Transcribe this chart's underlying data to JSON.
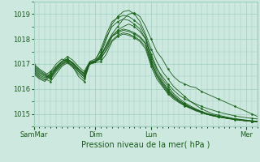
{
  "xlabel": "Pression niveau de la mer( hPa )",
  "background_color": "#cce8df",
  "grid_color": "#9ecfbf",
  "line_color": "#1a5c1a",
  "marker_color": "#1a6b1a",
  "ylim": [
    1014.5,
    1019.5
  ],
  "yticks": [
    1015,
    1016,
    1017,
    1018,
    1019
  ],
  "xtick_labels": [
    "SamMar",
    "Dim",
    "Lun",
    "Mer"
  ],
  "xtick_positions": [
    0,
    55,
    105,
    190
  ],
  "xlim": [
    0,
    200
  ],
  "series": [
    {
      "x": [
        0,
        5,
        10,
        15,
        20,
        25,
        30,
        35,
        40,
        45,
        50,
        55,
        60,
        65,
        70,
        75,
        80,
        85,
        90,
        95,
        100,
        105,
        110,
        115,
        120,
        125,
        130,
        135,
        140,
        145,
        150,
        155,
        160,
        165,
        170,
        175,
        180,
        185,
        190,
        195,
        200
      ],
      "y": [
        1016.8,
        1016.6,
        1016.5,
        1016.4,
        1016.9,
        1017.1,
        1017.2,
        1017.0,
        1016.8,
        1016.6,
        1017.0,
        1017.1,
        1017.3,
        1017.8,
        1018.2,
        1018.5,
        1018.8,
        1019.0,
        1019.05,
        1018.9,
        1018.5,
        1018.0,
        1017.5,
        1017.2,
        1016.8,
        1016.5,
        1016.3,
        1016.2,
        1016.1,
        1016.05,
        1015.9,
        1015.8,
        1015.7,
        1015.6,
        1015.5,
        1015.4,
        1015.3,
        1015.2,
        1015.1,
        1015.0,
        1014.9
      ]
    },
    {
      "x": [
        0,
        5,
        10,
        15,
        20,
        25,
        30,
        35,
        40,
        45,
        50,
        55,
        60,
        65,
        70,
        75,
        80,
        85,
        90,
        95,
        100,
        105,
        110,
        115,
        120,
        125,
        130,
        135,
        140,
        145,
        150,
        155,
        160,
        165,
        170,
        175,
        180,
        185,
        190,
        195,
        200
      ],
      "y": [
        1016.9,
        1016.7,
        1016.55,
        1016.7,
        1017.0,
        1017.2,
        1017.1,
        1016.9,
        1016.5,
        1016.3,
        1017.05,
        1017.1,
        1017.4,
        1018.0,
        1018.6,
        1018.9,
        1019.1,
        1019.15,
        1019.0,
        1018.7,
        1018.2,
        1017.6,
        1017.1,
        1016.7,
        1016.4,
        1016.1,
        1015.9,
        1015.7,
        1015.5,
        1015.35,
        1015.2,
        1015.1,
        1015.0,
        1014.95,
        1014.9,
        1014.85,
        1014.8,
        1014.78,
        1014.75,
        1014.72,
        1014.7
      ]
    },
    {
      "x": [
        0,
        5,
        10,
        15,
        20,
        25,
        30,
        35,
        40,
        45,
        50,
        55,
        60,
        65,
        70,
        75,
        80,
        85,
        90,
        95,
        100,
        105,
        110,
        115,
        120,
        125,
        130,
        135,
        140,
        145,
        150,
        155,
        160,
        165,
        170,
        175,
        180,
        185,
        190,
        195,
        200
      ],
      "y": [
        1016.7,
        1016.5,
        1016.4,
        1016.3,
        1016.6,
        1016.9,
        1017.05,
        1016.85,
        1016.6,
        1016.4,
        1017.0,
        1017.1,
        1017.2,
        1017.6,
        1018.1,
        1018.35,
        1018.5,
        1018.6,
        1018.5,
        1018.3,
        1018.0,
        1017.3,
        1016.8,
        1016.5,
        1016.2,
        1015.95,
        1015.75,
        1015.6,
        1015.5,
        1015.4,
        1015.3,
        1015.22,
        1015.15,
        1015.08,
        1015.02,
        1014.97,
        1014.92,
        1014.88,
        1014.85,
        1014.82,
        1014.8
      ]
    },
    {
      "x": [
        0,
        5,
        10,
        15,
        20,
        25,
        30,
        35,
        40,
        45,
        50,
        55,
        60,
        65,
        70,
        75,
        80,
        85,
        90,
        95,
        100,
        105,
        110,
        115,
        120,
        125,
        130,
        135,
        140,
        145,
        150,
        155,
        160,
        165,
        170,
        175,
        180,
        185,
        190,
        195,
        200
      ],
      "y": [
        1017.0,
        1016.8,
        1016.65,
        1016.5,
        1016.8,
        1017.1,
        1017.3,
        1017.15,
        1016.9,
        1016.7,
        1017.1,
        1017.2,
        1017.5,
        1018.1,
        1018.5,
        1018.7,
        1018.8,
        1018.75,
        1018.6,
        1018.4,
        1018.0,
        1017.2,
        1016.7,
        1016.3,
        1016.0,
        1015.75,
        1015.55,
        1015.4,
        1015.28,
        1015.18,
        1015.08,
        1015.0,
        1014.95,
        1014.9,
        1014.85,
        1014.82,
        1014.78,
        1014.75,
        1014.72,
        1014.7,
        1014.68
      ]
    },
    {
      "x": [
        0,
        5,
        10,
        15,
        20,
        25,
        30,
        35,
        40,
        45,
        50,
        55,
        60,
        65,
        70,
        75,
        80,
        85,
        90,
        95,
        100,
        105,
        110,
        115,
        120,
        125,
        130,
        135,
        140,
        145,
        150,
        155,
        160,
        165,
        170,
        175,
        180,
        185,
        190,
        195,
        200
      ],
      "y": [
        1016.6,
        1016.4,
        1016.3,
        1016.55,
        1016.8,
        1017.0,
        1017.1,
        1016.95,
        1016.7,
        1016.5,
        1017.0,
        1017.05,
        1017.1,
        1017.4,
        1017.9,
        1018.1,
        1018.2,
        1018.15,
        1018.05,
        1017.9,
        1017.6,
        1016.9,
        1016.4,
        1016.1,
        1015.8,
        1015.6,
        1015.45,
        1015.32,
        1015.22,
        1015.12,
        1015.05,
        1014.98,
        1014.92,
        1014.88,
        1014.84,
        1014.8,
        1014.77,
        1014.74,
        1014.72,
        1014.7,
        1014.68
      ]
    },
    {
      "x": [
        0,
        5,
        10,
        15,
        20,
        25,
        30,
        35,
        40,
        45,
        50,
        55,
        60,
        65,
        70,
        75,
        80,
        85,
        90,
        95,
        100,
        105,
        110,
        115,
        120,
        125,
        130,
        135,
        140,
        145,
        150,
        155,
        160,
        165,
        170,
        175,
        180,
        185,
        190,
        195,
        200
      ],
      "y": [
        1016.75,
        1016.55,
        1016.45,
        1016.6,
        1016.85,
        1017.05,
        1017.15,
        1017.0,
        1016.75,
        1016.55,
        1017.02,
        1017.08,
        1017.3,
        1017.7,
        1018.1,
        1018.25,
        1018.35,
        1018.3,
        1018.2,
        1018.05,
        1017.8,
        1017.05,
        1016.55,
        1016.2,
        1015.9,
        1015.68,
        1015.5,
        1015.36,
        1015.25,
        1015.15,
        1015.07,
        1014.99,
        1014.93,
        1014.89,
        1014.85,
        1014.81,
        1014.78,
        1014.75,
        1014.73,
        1014.71,
        1014.69
      ]
    },
    {
      "x": [
        0,
        5,
        10,
        15,
        20,
        25,
        30,
        35,
        40,
        45,
        50,
        55,
        60,
        65,
        70,
        75,
        80,
        85,
        90,
        95,
        100,
        105,
        110,
        115,
        120,
        125,
        130,
        135,
        140,
        145,
        150,
        155,
        160,
        165,
        170,
        175,
        180,
        185,
        190,
        195,
        200
      ],
      "y": [
        1016.85,
        1016.65,
        1016.55,
        1016.45,
        1016.75,
        1017.0,
        1017.2,
        1017.05,
        1016.8,
        1016.6,
        1017.05,
        1017.15,
        1017.6,
        1018.2,
        1018.7,
        1018.85,
        1018.95,
        1018.9,
        1018.75,
        1018.55,
        1018.1,
        1017.4,
        1016.85,
        1016.4,
        1016.1,
        1015.82,
        1015.62,
        1015.45,
        1015.32,
        1015.2,
        1015.1,
        1015.02,
        1014.96,
        1014.91,
        1014.87,
        1014.83,
        1014.8,
        1014.77,
        1014.74,
        1014.72,
        1014.7
      ]
    },
    {
      "x": [
        0,
        5,
        10,
        15,
        20,
        25,
        30,
        35,
        40,
        45,
        50,
        55,
        60,
        65,
        70,
        75,
        80,
        85,
        90,
        95,
        100,
        105,
        110,
        115,
        120,
        125,
        130,
        135,
        140,
        145,
        150,
        155,
        160,
        165,
        170,
        175,
        180,
        185,
        190,
        195,
        200
      ],
      "y": [
        1016.95,
        1016.75,
        1016.6,
        1016.4,
        1016.7,
        1016.95,
        1017.1,
        1016.92,
        1016.68,
        1016.48,
        1016.98,
        1017.08,
        1017.25,
        1017.55,
        1017.95,
        1018.15,
        1018.25,
        1018.2,
        1018.1,
        1017.95,
        1017.7,
        1017.0,
        1016.5,
        1016.15,
        1015.85,
        1015.65,
        1015.48,
        1015.34,
        1015.24,
        1015.14,
        1015.06,
        1014.98,
        1014.93,
        1014.88,
        1014.84,
        1014.81,
        1014.78,
        1014.75,
        1014.72,
        1014.7,
        1014.68
      ]
    },
    {
      "x": [
        0,
        5,
        10,
        15,
        20,
        25,
        30,
        35,
        40,
        45,
        50,
        55,
        60,
        65,
        70,
        75,
        80,
        85,
        90,
        95,
        100,
        105,
        110,
        115,
        120,
        125,
        130,
        135,
        140,
        145,
        150,
        155,
        160,
        165,
        170,
        175,
        180,
        185,
        190,
        195,
        200
      ],
      "y": [
        1016.65,
        1016.45,
        1016.35,
        1016.65,
        1016.9,
        1017.1,
        1017.2,
        1017.05,
        1016.82,
        1016.62,
        1017.08,
        1017.12,
        1017.35,
        1017.75,
        1018.15,
        1018.3,
        1018.4,
        1018.35,
        1018.25,
        1018.1,
        1017.85,
        1017.1,
        1016.6,
        1016.25,
        1015.95,
        1015.72,
        1015.54,
        1015.38,
        1015.26,
        1015.16,
        1015.07,
        1014.99,
        1014.94,
        1014.89,
        1014.85,
        1014.82,
        1014.79,
        1014.76,
        1014.73,
        1014.71,
        1014.69
      ]
    }
  ]
}
